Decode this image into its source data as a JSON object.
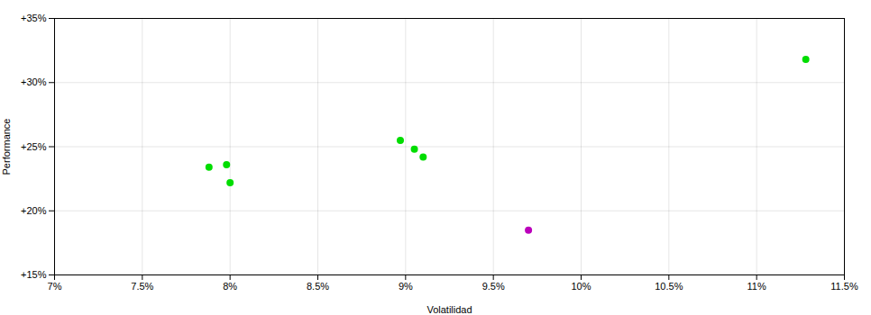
{
  "chart_data": {
    "type": "scatter",
    "xlabel": "Volatilidad",
    "ylabel": "Performance",
    "xlim": [
      0.07,
      0.115
    ],
    "ylim": [
      0.15,
      0.35
    ],
    "xticks": [
      {
        "value": 0.07,
        "label": "7%"
      },
      {
        "value": 0.075,
        "label": "7.5%"
      },
      {
        "value": 0.08,
        "label": "8%"
      },
      {
        "value": 0.085,
        "label": "8.5%"
      },
      {
        "value": 0.09,
        "label": "9%"
      },
      {
        "value": 0.095,
        "label": "9.5%"
      },
      {
        "value": 0.1,
        "label": "10%"
      },
      {
        "value": 0.105,
        "label": "10.5%"
      },
      {
        "value": 0.11,
        "label": "11%"
      },
      {
        "value": 0.115,
        "label": "11.5%"
      }
    ],
    "yticks": [
      {
        "value": 0.15,
        "label": "+15%"
      },
      {
        "value": 0.2,
        "label": "+20%"
      },
      {
        "value": 0.25,
        "label": "+25%"
      },
      {
        "value": 0.3,
        "label": "+30%"
      },
      {
        "value": 0.35,
        "label": "+35%"
      }
    ],
    "grid": true,
    "series": [
      {
        "color": "#00dd00",
        "x": [
          0.0788,
          0.0798,
          0.08,
          0.0897,
          0.0905,
          0.091,
          0.1128
        ],
        "values": [
          0.234,
          0.236,
          0.222,
          0.255,
          0.248,
          0.242,
          0.318
        ]
      },
      {
        "color": "#bb00bb",
        "x": [
          0.097
        ],
        "values": [
          0.185
        ]
      }
    ]
  }
}
